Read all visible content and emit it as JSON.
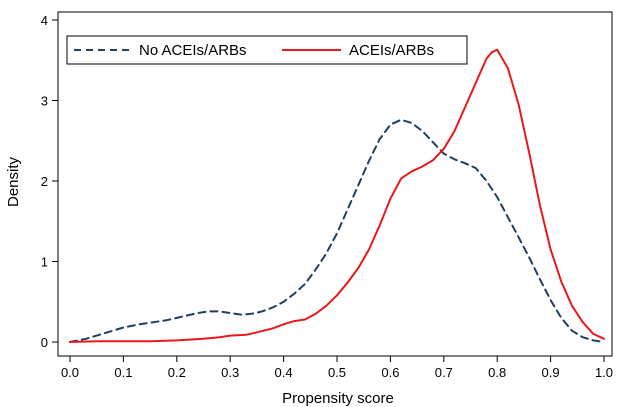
{
  "chart_data": {
    "type": "line",
    "xlabel": "Propensity score",
    "ylabel": "Density",
    "xlim": [
      0.0,
      1.0
    ],
    "ylim": [
      0,
      4
    ],
    "x_ticks": [
      "0.0",
      "0.1",
      "0.2",
      "0.3",
      "0.4",
      "0.5",
      "0.6",
      "0.7",
      "0.8",
      "0.9",
      "1.0"
    ],
    "y_ticks": [
      "0",
      "1",
      "2",
      "3",
      "4"
    ],
    "grid": false,
    "legend_position": "top-left",
    "series": [
      {
        "name": "No ACEIs/ARBs",
        "color": "#1f3f66",
        "style": "dashed",
        "x": [
          0.0,
          0.03,
          0.05,
          0.08,
          0.1,
          0.13,
          0.15,
          0.18,
          0.2,
          0.22,
          0.24,
          0.26,
          0.28,
          0.3,
          0.32,
          0.34,
          0.36,
          0.38,
          0.4,
          0.42,
          0.44,
          0.46,
          0.48,
          0.5,
          0.52,
          0.54,
          0.56,
          0.58,
          0.6,
          0.62,
          0.64,
          0.66,
          0.68,
          0.7,
          0.72,
          0.74,
          0.76,
          0.78,
          0.8,
          0.82,
          0.84,
          0.86,
          0.88,
          0.9,
          0.92,
          0.94,
          0.96,
          0.98,
          1.0
        ],
        "y": [
          0.0,
          0.04,
          0.08,
          0.14,
          0.18,
          0.22,
          0.24,
          0.27,
          0.3,
          0.33,
          0.36,
          0.38,
          0.38,
          0.36,
          0.34,
          0.35,
          0.38,
          0.43,
          0.5,
          0.6,
          0.72,
          0.9,
          1.1,
          1.35,
          1.65,
          1.95,
          2.25,
          2.52,
          2.7,
          2.76,
          2.72,
          2.62,
          2.48,
          2.34,
          2.27,
          2.22,
          2.16,
          2.0,
          1.8,
          1.55,
          1.3,
          1.05,
          0.78,
          0.52,
          0.3,
          0.14,
          0.06,
          0.02,
          0.0
        ]
      },
      {
        "name": "ACEIs/ARBs",
        "color": "#e8191c",
        "style": "solid",
        "x": [
          0.0,
          0.05,
          0.1,
          0.15,
          0.2,
          0.25,
          0.28,
          0.3,
          0.33,
          0.35,
          0.38,
          0.4,
          0.42,
          0.44,
          0.46,
          0.48,
          0.5,
          0.52,
          0.54,
          0.56,
          0.58,
          0.6,
          0.62,
          0.64,
          0.66,
          0.68,
          0.7,
          0.72,
          0.74,
          0.76,
          0.78,
          0.79,
          0.8,
          0.82,
          0.84,
          0.86,
          0.88,
          0.9,
          0.92,
          0.94,
          0.96,
          0.98,
          1.0
        ],
        "y": [
          0.0,
          0.01,
          0.01,
          0.01,
          0.02,
          0.04,
          0.06,
          0.08,
          0.09,
          0.12,
          0.17,
          0.22,
          0.26,
          0.28,
          0.35,
          0.45,
          0.58,
          0.74,
          0.92,
          1.15,
          1.45,
          1.78,
          2.03,
          2.12,
          2.18,
          2.26,
          2.4,
          2.62,
          2.92,
          3.22,
          3.52,
          3.6,
          3.63,
          3.4,
          2.95,
          2.35,
          1.7,
          1.15,
          0.75,
          0.45,
          0.25,
          0.1,
          0.04
        ]
      }
    ]
  }
}
